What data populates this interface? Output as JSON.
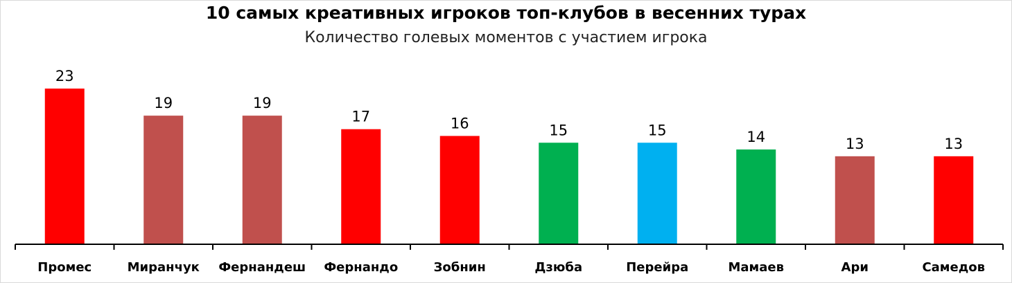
{
  "chart_data": {
    "type": "bar",
    "title": "10 самых креативных игроков топ-клубов в весенних турах",
    "subtitle": "Количество голевых моментов с участием игрока",
    "xlabel": "",
    "ylabel": "",
    "ylim": [
      0,
      23
    ],
    "grid": false,
    "legend": "none",
    "data_labels": true,
    "categories": [
      "Промес",
      "Миранчук",
      "Фернандеш",
      "Фернандо",
      "Зобнин",
      "Дзюба",
      "Перейра",
      "Мамаев",
      "Ари",
      "Самедов"
    ],
    "values": [
      23,
      19,
      19,
      17,
      16,
      15,
      15,
      14,
      13,
      13
    ],
    "bar_colors": [
      "#ff0000",
      "#c0504d",
      "#c0504d",
      "#ff0000",
      "#ff0000",
      "#00b050",
      "#00b0f0",
      "#00b050",
      "#c0504d",
      "#ff0000"
    ]
  }
}
